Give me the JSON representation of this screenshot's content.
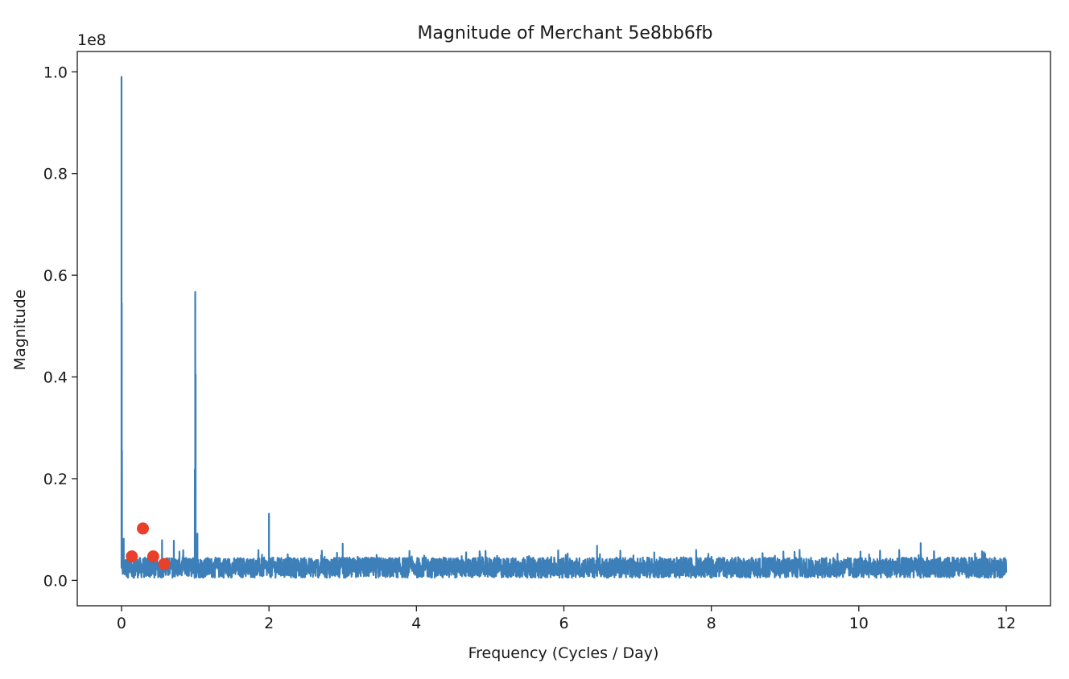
{
  "chart_data": {
    "type": "line",
    "title": "Magnitude of Merchant 5e8bb6fb",
    "xlabel": "Frequency (Cycles / Day)",
    "ylabel": "Magnitude",
    "y_offset_label": "1e8",
    "xlim": [
      -0.6,
      12.6
    ],
    "ylim": [
      -0.05,
      1.04
    ],
    "y_scale_factor": 100000000,
    "x_ticks": [
      0,
      2,
      4,
      6,
      8,
      10,
      12
    ],
    "x_tick_labels": [
      "0",
      "2",
      "4",
      "6",
      "8",
      "10",
      "12"
    ],
    "y_ticks": [
      0.0,
      0.2,
      0.4,
      0.6,
      0.8,
      1.0
    ],
    "y_tick_labels": [
      "0.0",
      "0.2",
      "0.4",
      "0.6",
      "0.8",
      "1.0"
    ],
    "grid": false,
    "series": [
      {
        "type": "line",
        "color": "#3d7fb8",
        "x_range": [
          0,
          12
        ],
        "baseline_range": [
          0.005,
          0.045
        ],
        "peaks": [
          {
            "x": 0.0,
            "y": 0.99
          },
          {
            "x": 0.003,
            "y": 0.545
          },
          {
            "x": 0.006,
            "y": 0.255
          },
          {
            "x": 0.03,
            "y": 0.082
          },
          {
            "x": 0.55,
            "y": 0.079
          },
          {
            "x": 0.71,
            "y": 0.078
          },
          {
            "x": 0.995,
            "y": 0.218
          },
          {
            "x": 1.0,
            "y": 0.567
          },
          {
            "x": 1.005,
            "y": 0.405
          },
          {
            "x": 1.03,
            "y": 0.092
          },
          {
            "x": 2.0,
            "y": 0.131
          },
          {
            "x": 3.0,
            "y": 0.072
          },
          {
            "x": 6.45,
            "y": 0.068
          },
          {
            "x": 10.84,
            "y": 0.073
          }
        ]
      },
      {
        "type": "scatter",
        "color": "#e8402a",
        "points": [
          {
            "x": 0.14,
            "y": 0.047
          },
          {
            "x": 0.29,
            "y": 0.102
          },
          {
            "x": 0.43,
            "y": 0.047
          },
          {
            "x": 0.58,
            "y": 0.032
          }
        ]
      }
    ]
  }
}
